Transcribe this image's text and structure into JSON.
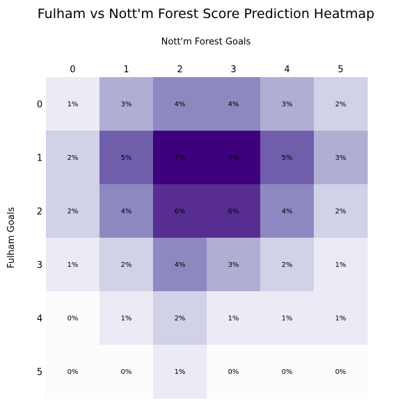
{
  "chart_data": {
    "type": "heatmap",
    "title": "Fulham vs Nott'm Forest Score Prediction Heatmap",
    "xlabel": "Nott'm Forest Goals",
    "ylabel": "Fulham Goals",
    "x_categories": [
      "0",
      "1",
      "2",
      "3",
      "4",
      "5"
    ],
    "y_categories": [
      "0",
      "1",
      "2",
      "3",
      "4",
      "5"
    ],
    "x_axis_position": "top",
    "colormap": "Purples",
    "grid": false,
    "values": [
      [
        1,
        3,
        4,
        4,
        3,
        2
      ],
      [
        2,
        5,
        7,
        7,
        5,
        3
      ],
      [
        2,
        4,
        6,
        6,
        4,
        2
      ],
      [
        1,
        2,
        4,
        3,
        2,
        1
      ],
      [
        0,
        1,
        2,
        1,
        1,
        1
      ],
      [
        0,
        0,
        1,
        0,
        0,
        0
      ]
    ],
    "cell_labels": [
      [
        "1%",
        "3%",
        "4%",
        "4%",
        "3%",
        "2%"
      ],
      [
        "2%",
        "5%",
        "7%",
        "7%",
        "5%",
        "3%"
      ],
      [
        "2%",
        "4%",
        "6%",
        "6%",
        "4%",
        "2%"
      ],
      [
        "1%",
        "2%",
        "4%",
        "3%",
        "2%",
        "1%"
      ],
      [
        "0%",
        "1%",
        "2%",
        "1%",
        "1%",
        "1%"
      ],
      [
        "0%",
        "0%",
        "1%",
        "0%",
        "0%",
        "0%"
      ]
    ],
    "value_unit": "%"
  }
}
